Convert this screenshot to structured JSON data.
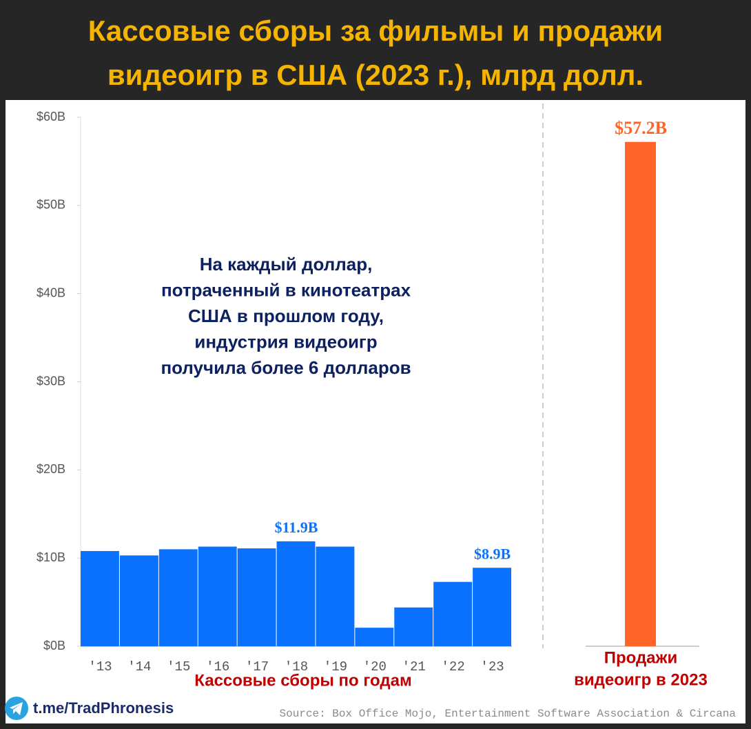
{
  "header": {
    "title": [
      "Кассовые сборы за фильмы и продажи",
      "видеоигр в США (2023 г.), млрд долл."
    ]
  },
  "chart_data": [
    {
      "type": "bar",
      "categories": [
        "'13",
        "'14",
        "'15",
        "'16",
        "'17",
        "'18",
        "'19",
        "'20",
        "'21",
        "'22",
        "'23"
      ],
      "values": [
        10.8,
        10.3,
        11.0,
        11.3,
        11.1,
        11.9,
        11.3,
        2.1,
        4.4,
        7.3,
        8.9
      ],
      "value_labels": [
        null,
        null,
        null,
        null,
        null,
        "$11.9B",
        null,
        null,
        null,
        null,
        "$8.9B"
      ],
      "color": "#0a72ff",
      "ylim": [
        0,
        60
      ],
      "yticks": [
        {
          "value": 0,
          "label": "$0B"
        },
        {
          "value": 10,
          "label": "$10B"
        },
        {
          "value": 20,
          "label": "$20B"
        },
        {
          "value": 30,
          "label": "$30B"
        },
        {
          "value": 40,
          "label": "$40B"
        },
        {
          "value": 50,
          "label": "$50B"
        },
        {
          "value": 60,
          "label": "$60B"
        }
      ],
      "x_label": "Кассовые сборы по годам",
      "annotation": [
        "На каждый доллар,",
        "потраченный в кинотеатрах",
        "США в прошлом году,",
        "индустрия видеоигр",
        "получила более 6 долларов"
      ]
    },
    {
      "type": "bar",
      "categories": [
        null
      ],
      "values": [
        57.2
      ],
      "value_labels": [
        "$57.2B"
      ],
      "color": "#ff6428",
      "ylim": [
        0,
        60
      ],
      "x_label": [
        "Продажи",
        "видеоигр в 2023"
      ]
    }
  ],
  "footer": {
    "link": "t.me/TradPhronesis",
    "source": "Source: Box Office Mojo, Entertainment Software Association & Circana"
  }
}
